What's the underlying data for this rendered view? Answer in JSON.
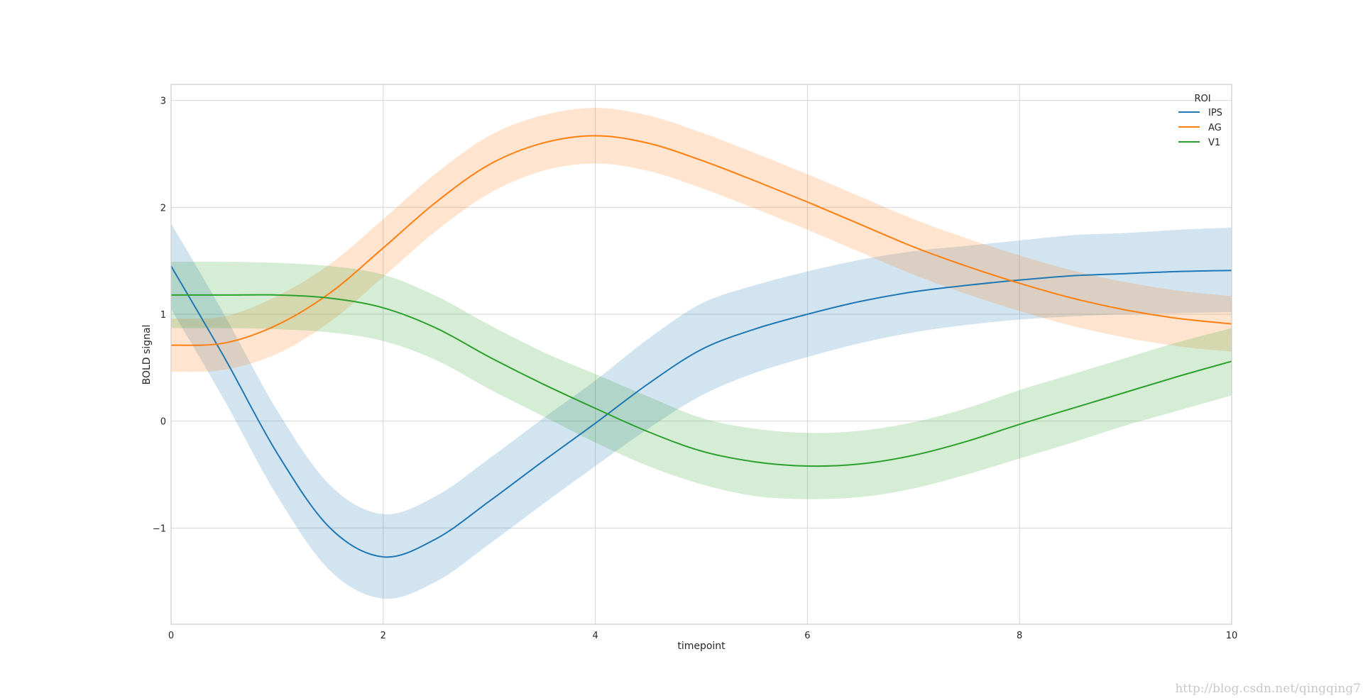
{
  "chart_data": {
    "type": "line",
    "title": "",
    "xlabel": "timepoint",
    "ylabel": "BOLD signal",
    "xlim": [
      0,
      10
    ],
    "ylim": [
      -1.9,
      3.15
    ],
    "x_ticks": [
      0,
      2,
      4,
      6,
      8,
      10
    ],
    "x_tick_labels": [
      "0",
      "2",
      "4",
      "6",
      "8",
      "10"
    ],
    "y_ticks": [
      -1,
      0,
      1,
      2,
      3
    ],
    "y_tick_labels": [
      "−1",
      "0",
      "1",
      "2",
      "3"
    ],
    "grid": true,
    "legend": {
      "title": "ROI",
      "placement": "top-right"
    },
    "x": [
      0,
      0.5,
      1,
      1.5,
      2,
      2.5,
      3,
      3.5,
      4,
      4.5,
      5,
      5.5,
      6,
      6.5,
      7,
      7.5,
      8,
      8.5,
      9,
      9.5,
      10
    ],
    "series": [
      {
        "name": "IPS",
        "color": "#1f77b4",
        "values": [
          1.45,
          0.6,
          -0.3,
          -1.0,
          -1.27,
          -1.1,
          -0.75,
          -0.38,
          -0.02,
          0.35,
          0.67,
          0.86,
          1.0,
          1.12,
          1.21,
          1.27,
          1.32,
          1.36,
          1.38,
          1.4,
          1.41
        ],
        "lower": [
          1.05,
          0.2,
          -0.7,
          -1.4,
          -1.66,
          -1.5,
          -1.15,
          -0.78,
          -0.42,
          -0.07,
          0.24,
          0.45,
          0.6,
          0.73,
          0.83,
          0.9,
          0.95,
          0.98,
          1.0,
          1.01,
          1.02
        ],
        "upper": [
          1.85,
          1.0,
          0.1,
          -0.6,
          -0.87,
          -0.7,
          -0.35,
          0.02,
          0.38,
          0.77,
          1.1,
          1.27,
          1.4,
          1.51,
          1.59,
          1.64,
          1.69,
          1.74,
          1.76,
          1.79,
          1.81
        ]
      },
      {
        "name": "AG",
        "color": "#ff7f0e",
        "values": [
          0.71,
          0.73,
          0.9,
          1.2,
          1.62,
          2.05,
          2.4,
          2.6,
          2.67,
          2.6,
          2.44,
          2.25,
          2.05,
          1.84,
          1.63,
          1.45,
          1.29,
          1.15,
          1.04,
          0.96,
          0.91
        ],
        "lower": [
          0.46,
          0.48,
          0.63,
          0.93,
          1.35,
          1.78,
          2.13,
          2.34,
          2.41,
          2.34,
          2.18,
          1.99,
          1.79,
          1.58,
          1.37,
          1.19,
          1.03,
          0.89,
          0.78,
          0.7,
          0.65
        ],
        "upper": [
          0.96,
          0.98,
          1.17,
          1.47,
          1.89,
          2.32,
          2.67,
          2.86,
          2.93,
          2.86,
          2.7,
          2.51,
          2.31,
          2.1,
          1.89,
          1.71,
          1.55,
          1.41,
          1.3,
          1.22,
          1.17
        ]
      },
      {
        "name": "V1",
        "color": "#2ca02c",
        "values": [
          1.18,
          1.18,
          1.18,
          1.15,
          1.06,
          0.87,
          0.6,
          0.35,
          0.12,
          -0.1,
          -0.28,
          -0.38,
          -0.42,
          -0.4,
          -0.32,
          -0.19,
          -0.03,
          0.12,
          0.27,
          0.42,
          0.56
        ],
        "lower": [
          0.87,
          0.87,
          0.86,
          0.83,
          0.75,
          0.57,
          0.3,
          0.05,
          -0.2,
          -0.42,
          -0.59,
          -0.7,
          -0.73,
          -0.71,
          -0.63,
          -0.5,
          -0.35,
          -0.2,
          -0.04,
          0.1,
          0.24
        ],
        "upper": [
          1.49,
          1.49,
          1.48,
          1.45,
          1.37,
          1.17,
          0.9,
          0.65,
          0.44,
          0.23,
          0.03,
          -0.07,
          -0.11,
          -0.09,
          -0.01,
          0.12,
          0.29,
          0.44,
          0.59,
          0.74,
          0.87
        ]
      }
    ]
  },
  "watermark": "http://blog.csdn.net/qingqing7"
}
